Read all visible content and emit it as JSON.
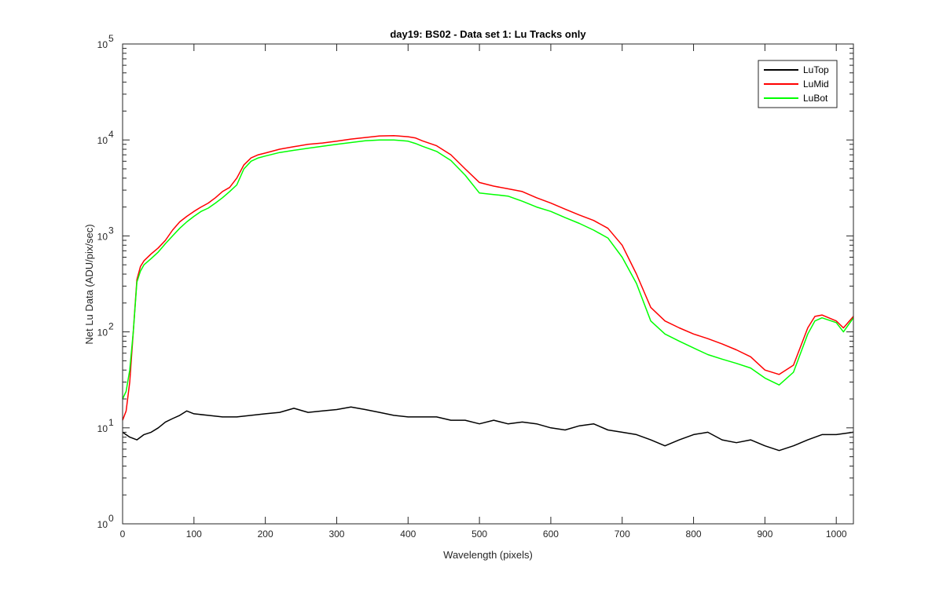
{
  "chart_data": {
    "type": "line",
    "title": "day19: BS02 - Data set 1: Lu Tracks only",
    "xlabel": "Wavelength (pixels)",
    "ylabel": "Net Lu Data (ADU/pix/sec)",
    "xlim": [
      0,
      1024
    ],
    "ylim": [
      1,
      100000
    ],
    "yscale": "log",
    "grid": false,
    "legend_position": "top-right",
    "x_ticks": [
      "0",
      "100",
      "200",
      "300",
      "400",
      "500",
      "600",
      "700",
      "800",
      "900",
      "1000"
    ],
    "y_ticks": [
      {
        "base": "10",
        "exp": "0"
      },
      {
        "base": "10",
        "exp": "1"
      },
      {
        "base": "10",
        "exp": "2"
      },
      {
        "base": "10",
        "exp": "3"
      },
      {
        "base": "10",
        "exp": "4"
      },
      {
        "base": "10",
        "exp": "5"
      }
    ],
    "series": [
      {
        "name": "LuTop",
        "color": "#000000",
        "x": [
          0,
          10,
          20,
          30,
          40,
          50,
          60,
          70,
          80,
          90,
          100,
          120,
          140,
          160,
          180,
          200,
          220,
          240,
          260,
          280,
          300,
          320,
          340,
          360,
          380,
          400,
          420,
          440,
          460,
          480,
          500,
          520,
          540,
          560,
          580,
          600,
          620,
          640,
          660,
          680,
          700,
          720,
          740,
          760,
          780,
          800,
          820,
          840,
          860,
          880,
          900,
          920,
          940,
          960,
          980,
          1000,
          1024
        ],
        "y": [
          9,
          8,
          7.5,
          8.5,
          9,
          10,
          11.5,
          12.5,
          13.5,
          15,
          14,
          13.5,
          13,
          13,
          13.5,
          14,
          14.5,
          16,
          14.5,
          15,
          15.5,
          16.5,
          15.5,
          14.5,
          13.5,
          13,
          13,
          13,
          12,
          12,
          11,
          12,
          11,
          11.5,
          11,
          10,
          9.5,
          10.5,
          11,
          9.5,
          9,
          8.5,
          7.5,
          6.5,
          7.5,
          8.5,
          9,
          7.5,
          7,
          7.5,
          6.5,
          5.8,
          6.5,
          7.5,
          8.5,
          8.5,
          9
        ]
      },
      {
        "name": "LuMid",
        "color": "#ff0000",
        "x": [
          0,
          5,
          10,
          15,
          20,
          25,
          30,
          40,
          50,
          60,
          70,
          80,
          90,
          100,
          110,
          120,
          130,
          140,
          150,
          160,
          170,
          180,
          190,
          200,
          220,
          240,
          260,
          280,
          300,
          320,
          340,
          360,
          380,
          400,
          410,
          420,
          440,
          460,
          480,
          500,
          520,
          540,
          560,
          580,
          600,
          620,
          640,
          660,
          680,
          700,
          720,
          740,
          760,
          780,
          800,
          820,
          840,
          860,
          880,
          900,
          920,
          940,
          960,
          970,
          980,
          1000,
          1010,
          1024
        ],
        "y": [
          12,
          15,
          30,
          100,
          350,
          480,
          550,
          650,
          750,
          900,
          1150,
          1400,
          1600,
          1800,
          2000,
          2200,
          2500,
          2900,
          3200,
          4000,
          5500,
          6500,
          7000,
          7300,
          8000,
          8500,
          9000,
          9300,
          9700,
          10200,
          10600,
          11000,
          11100,
          10800,
          10500,
          9800,
          8700,
          7000,
          5000,
          3600,
          3300,
          3100,
          2900,
          2500,
          2200,
          1900,
          1650,
          1450,
          1200,
          800,
          400,
          180,
          130,
          110,
          95,
          85,
          75,
          65,
          55,
          40,
          36,
          45,
          110,
          145,
          150,
          130,
          110,
          145
        ]
      },
      {
        "name": "LuBot",
        "color": "#00ff00",
        "x": [
          0,
          5,
          10,
          15,
          20,
          25,
          30,
          40,
          50,
          60,
          70,
          80,
          90,
          100,
          110,
          120,
          130,
          140,
          150,
          160,
          170,
          180,
          190,
          200,
          220,
          240,
          260,
          280,
          300,
          320,
          340,
          360,
          380,
          400,
          410,
          420,
          440,
          460,
          480,
          500,
          520,
          540,
          560,
          580,
          600,
          620,
          640,
          660,
          680,
          700,
          720,
          740,
          760,
          780,
          800,
          820,
          840,
          860,
          880,
          900,
          920,
          940,
          960,
          970,
          980,
          1000,
          1010,
          1024
        ],
        "y": [
          20,
          24,
          40,
          100,
          330,
          430,
          500,
          580,
          680,
          830,
          1000,
          1200,
          1400,
          1600,
          1800,
          1950,
          2200,
          2500,
          2900,
          3400,
          5000,
          6000,
          6500,
          6800,
          7400,
          7800,
          8200,
          8600,
          9000,
          9400,
          9800,
          10000,
          10000,
          9700,
          9200,
          8600,
          7600,
          6100,
          4300,
          2800,
          2700,
          2600,
          2300,
          2000,
          1800,
          1550,
          1350,
          1150,
          950,
          600,
          320,
          130,
          95,
          80,
          68,
          58,
          52,
          47,
          42,
          33,
          28,
          38,
          95,
          130,
          140,
          125,
          100,
          140
        ]
      }
    ]
  }
}
